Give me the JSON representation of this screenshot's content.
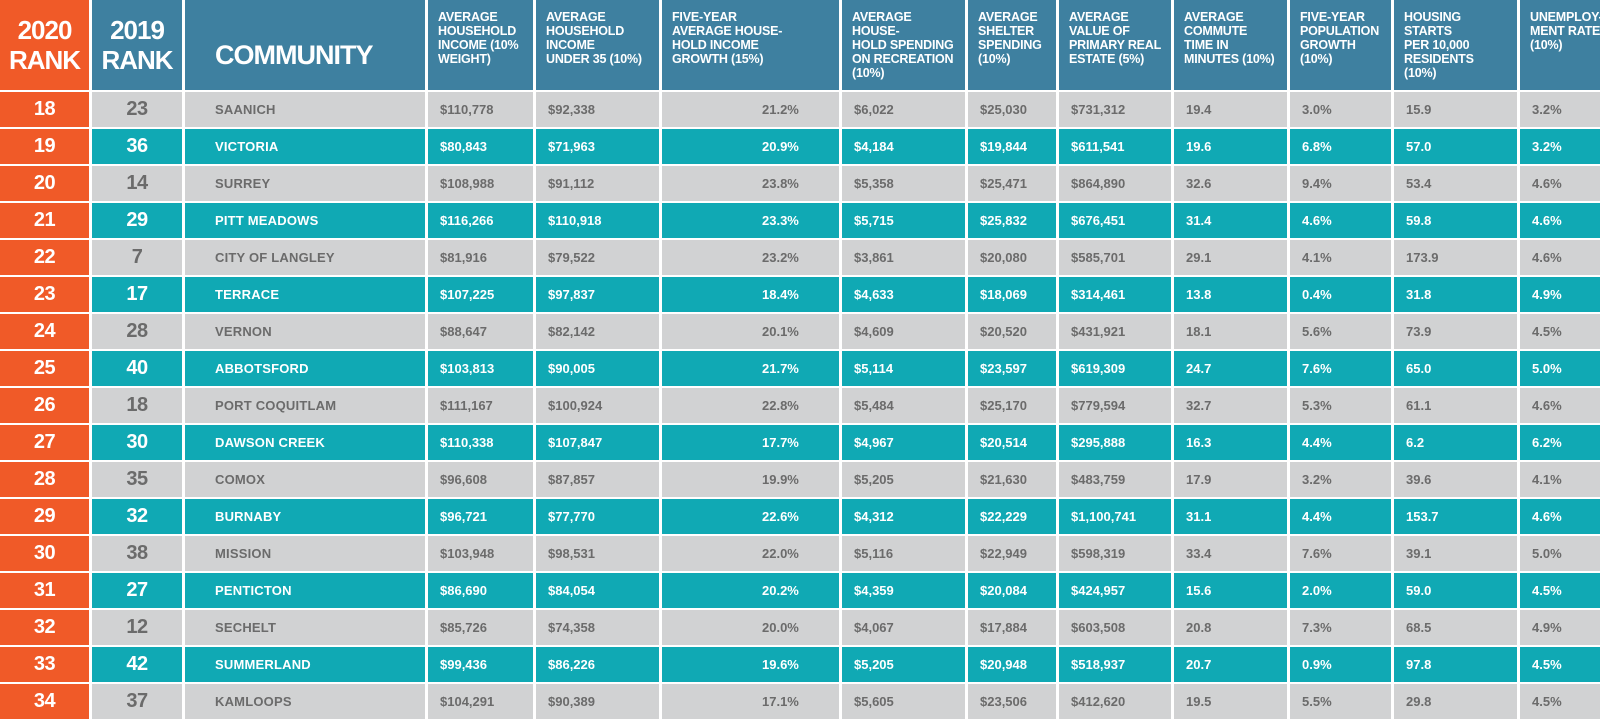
{
  "headers": [
    "2020\nRANK",
    "2019\nRANK",
    "COMMUNITY",
    "AVERAGE\nHOUSEHOLD\nINCOME (10%\nWEIGHT)",
    "AVERAGE\nHOUSEHOLD\nINCOME\nUNDER 35 (10%)",
    "FIVE-YEAR\nAVERAGE HOUSE-\nHOLD INCOME\nGROWTH (15%)",
    "AVERAGE HOUSE-\nHOLD SPENDING\nON RECREATION\n(10%)",
    "AVERAGE\nSHELTER\nSPENDING\n(10%)",
    "AVERAGE\nVALUE OF\nPRIMARY REAL\nESTATE (5%)",
    "AVERAGE\nCOMMUTE\nTIME IN\nMINUTES (10%)",
    "FIVE-YEAR\nPOPULATION\nGROWTH\n(10%)",
    "HOUSING STARTS\nPER 10,000\nRESIDENTS\n(10%)",
    "UNEMPLOY-\nMENT RATE\n(10%)"
  ],
  "colors": {
    "orange": "#f05a28",
    "header_blue": "#3e80a0",
    "teal_row": "#10a9b4",
    "grey_row": "#d1d2d3"
  },
  "rows": [
    [
      "18",
      "23",
      "SAANICH",
      "$110,778",
      "$92,338",
      "21.2%",
      "$6,022",
      "$25,030",
      "$731,312",
      "19.4",
      "3.0%",
      "15.9",
      "3.2%"
    ],
    [
      "19",
      "36",
      "VICTORIA",
      "$80,843",
      "$71,963",
      "20.9%",
      "$4,184",
      "$19,844",
      "$611,541",
      "19.6",
      "6.8%",
      "57.0",
      "3.2%"
    ],
    [
      "20",
      "14",
      "SURREY",
      "$108,988",
      "$91,112",
      "23.8%",
      "$5,358",
      "$25,471",
      "$864,890",
      "32.6",
      "9.4%",
      "53.4",
      "4.6%"
    ],
    [
      "21",
      "29",
      "PITT MEADOWS",
      "$116,266",
      "$110,918",
      "23.3%",
      "$5,715",
      "$25,832",
      "$676,451",
      "31.4",
      "4.6%",
      "59.8",
      "4.6%"
    ],
    [
      "22",
      "7",
      "CITY OF LANGLEY",
      "$81,916",
      "$79,522",
      "23.2%",
      "$3,861",
      "$20,080",
      "$585,701",
      "29.1",
      "4.1%",
      "173.9",
      "4.6%"
    ],
    [
      "23",
      "17",
      "TERRACE",
      "$107,225",
      "$97,837",
      "18.4%",
      "$4,633",
      "$18,069",
      "$314,461",
      "13.8",
      "0.4%",
      "31.8",
      "4.9%"
    ],
    [
      "24",
      "28",
      "VERNON",
      "$88,647",
      "$82,142",
      "20.1%",
      "$4,609",
      "$20,520",
      "$431,921",
      "18.1",
      "5.6%",
      "73.9",
      "4.5%"
    ],
    [
      "25",
      "40",
      "ABBOTSFORD",
      "$103,813",
      "$90,005",
      "21.7%",
      "$5,114",
      "$23,597",
      "$619,309",
      "24.7",
      "7.6%",
      "65.0",
      "5.0%"
    ],
    [
      "26",
      "18",
      "PORT COQUITLAM",
      "$111,167",
      "$100,924",
      "22.8%",
      "$5,484",
      "$25,170",
      "$779,594",
      "32.7",
      "5.3%",
      "61.1",
      "4.6%"
    ],
    [
      "27",
      "30",
      "DAWSON CREEK",
      "$110,338",
      "$107,847",
      "17.7%",
      "$4,967",
      "$20,514",
      "$295,888",
      "16.3",
      "4.4%",
      "6.2",
      "6.2%"
    ],
    [
      "28",
      "35",
      "COMOX",
      "$96,608",
      "$87,857",
      "19.9%",
      "$5,205",
      "$21,630",
      "$483,759",
      "17.9",
      "3.2%",
      "39.6",
      "4.1%"
    ],
    [
      "29",
      "32",
      "BURNABY",
      "$96,721",
      "$77,770",
      "22.6%",
      "$4,312",
      "$22,229",
      "$1,100,741",
      "31.1",
      "4.4%",
      "153.7",
      "4.6%"
    ],
    [
      "30",
      "38",
      "MISSION",
      "$103,948",
      "$98,531",
      "22.0%",
      "$5,116",
      "$22,949",
      "$598,319",
      "33.4",
      "7.6%",
      "39.1",
      "5.0%"
    ],
    [
      "31",
      "27",
      "PENTICTON",
      "$86,690",
      "$84,054",
      "20.2%",
      "$4,359",
      "$20,084",
      "$424,957",
      "15.6",
      "2.0%",
      "59.0",
      "4.5%"
    ],
    [
      "32",
      "12",
      "SECHELT",
      "$85,726",
      "$74,358",
      "20.0%",
      "$4,067",
      "$17,884",
      "$603,508",
      "20.8",
      "7.3%",
      "68.5",
      "4.9%"
    ],
    [
      "33",
      "42",
      "SUMMERLAND",
      "$99,436",
      "$86,226",
      "19.6%",
      "$5,205",
      "$20,948",
      "$518,937",
      "20.7",
      "0.9%",
      "97.8",
      "4.5%"
    ],
    [
      "34",
      "37",
      "KAMLOOPS",
      "$104,291",
      "$90,389",
      "17.1%",
      "$5,605",
      "$23,506",
      "$412,620",
      "19.5",
      "5.5%",
      "29.8",
      "4.5%"
    ]
  ]
}
